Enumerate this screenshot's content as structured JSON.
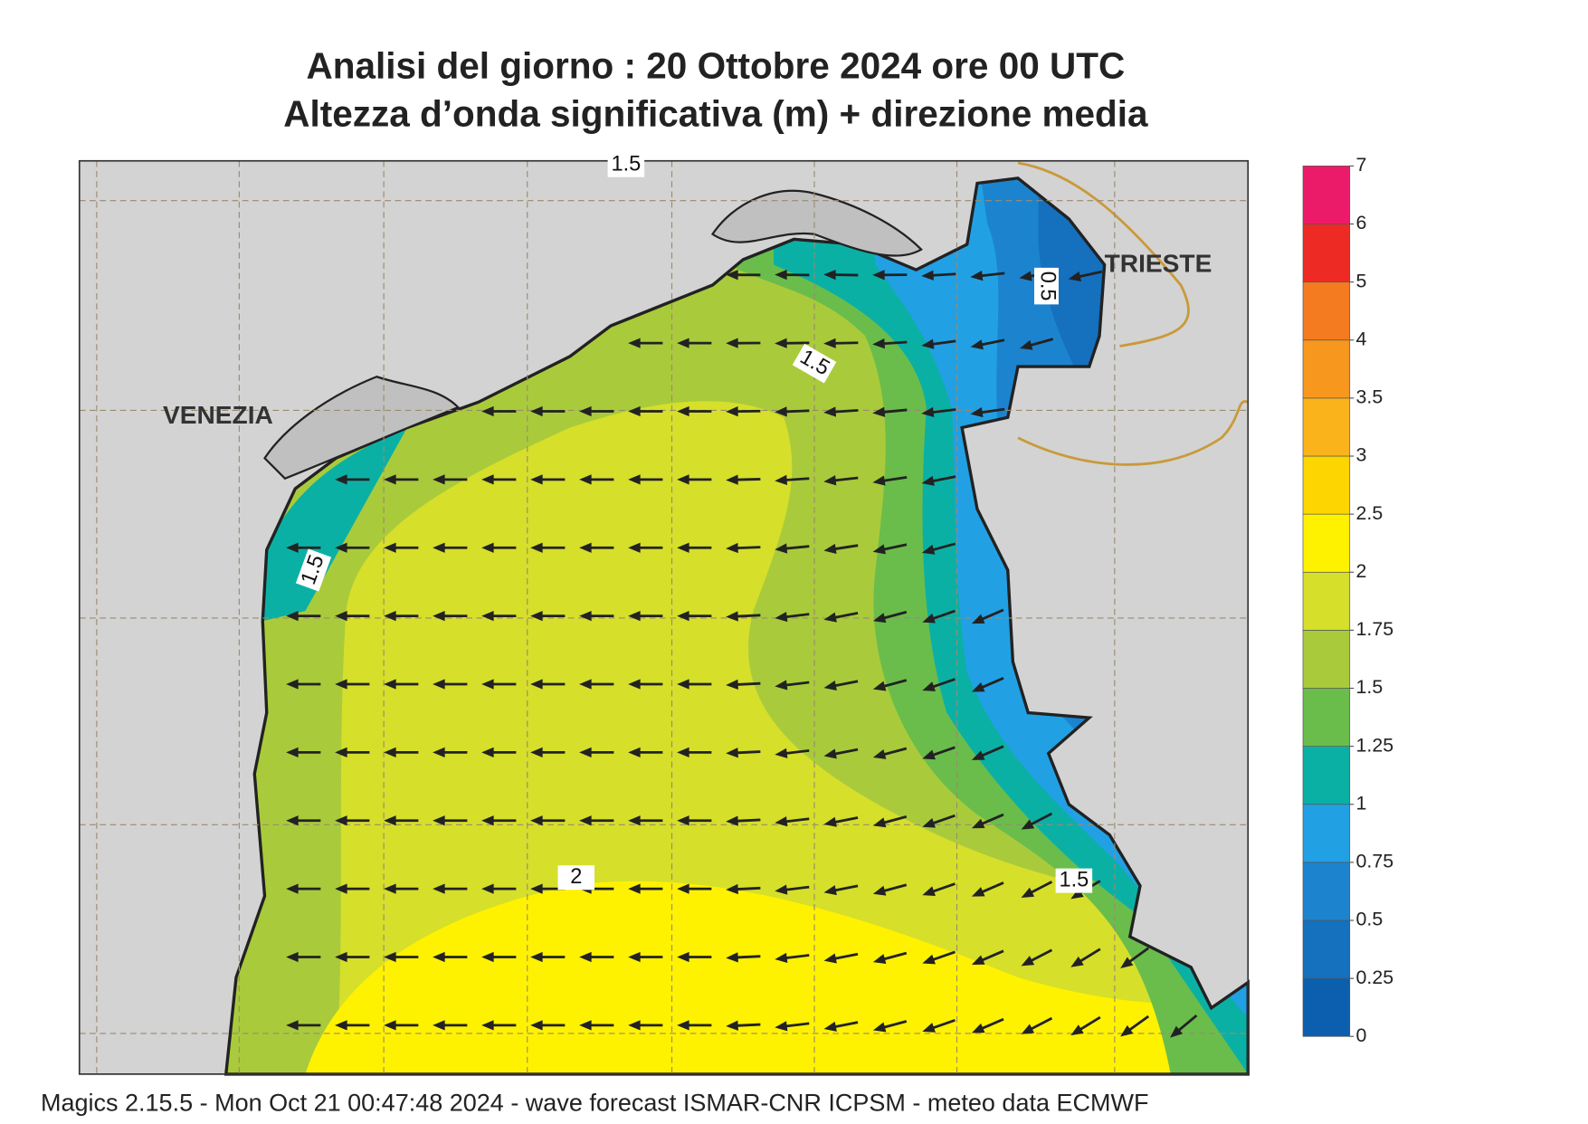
{
  "header": {
    "title_line1": "Analisi del giorno :  20  Ottobre  2024   ore 00 UTC",
    "title_line2": "Altezza d’onda significativa (m) + direzione media"
  },
  "places": [
    "VENEZIA",
    "TRIESTE"
  ],
  "contour_labels": [
    1.5,
    1.5,
    1.5,
    2,
    0.5,
    1.5
  ],
  "colorbar": {
    "levels": [
      0,
      0.25,
      0.5,
      0.75,
      1,
      1.25,
      1.5,
      1.75,
      2,
      2.5,
      3,
      3.5,
      4,
      5,
      6,
      7
    ],
    "colors": [
      "#0b5fae",
      "#1570be",
      "#1c84cf",
      "#22a0e4",
      "#0bb0a5",
      "#6abd4b",
      "#a9cb3b",
      "#d6df2a",
      "#fff200",
      "#fdd500",
      "#fbb31b",
      "#f8971d",
      "#f47b20",
      "#ee2a24",
      "#ec1b6a"
    ]
  },
  "footer": "Magics 2.15.5 - Mon Oct 21 00:47:48 2024 - wave forecast  ISMAR-CNR  ICPSM - meteo data    ECMWF"
}
